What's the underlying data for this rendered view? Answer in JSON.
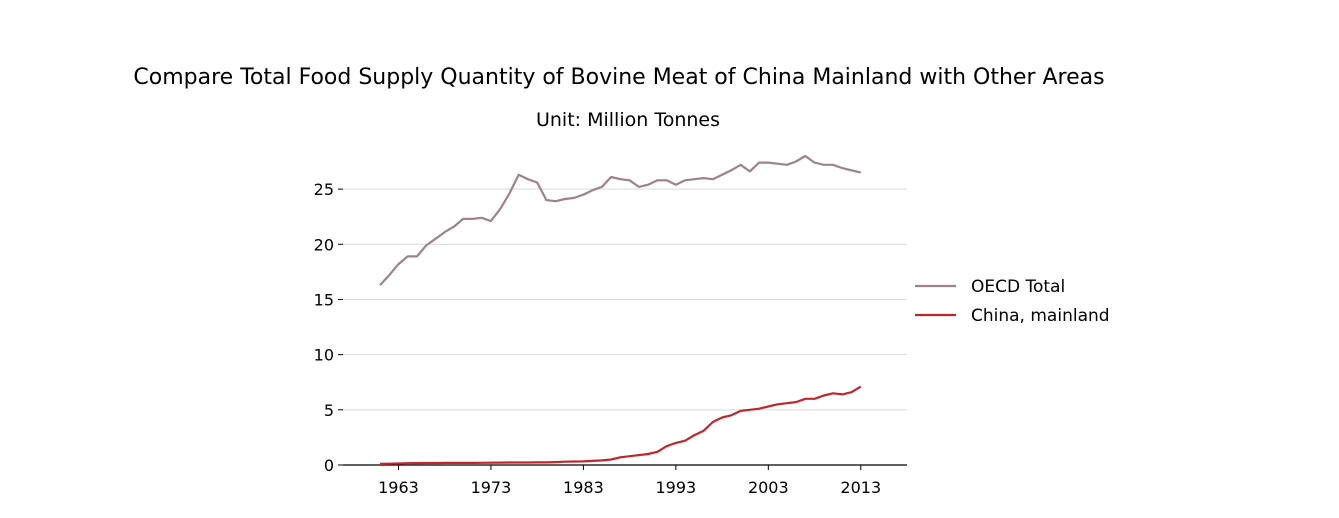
{
  "chart_data": {
    "type": "line",
    "title": "Compare Total Food Supply Quantity of Bovine Meat of China Mainland with Other Areas",
    "subtitle": "Unit: Million Tonnes",
    "xlabel": "",
    "ylabel": "",
    "xlim": [
      1957,
      2018
    ],
    "ylim": [
      0,
      28
    ],
    "x_ticks": [
      1963,
      1973,
      1983,
      1993,
      2003,
      2013
    ],
    "y_ticks": [
      0,
      5,
      10,
      15,
      20,
      25
    ],
    "grid": "horizontal",
    "legend_position": "right",
    "x": [
      1961,
      1962,
      1963,
      1964,
      1965,
      1966,
      1967,
      1968,
      1969,
      1970,
      1971,
      1972,
      1973,
      1974,
      1975,
      1976,
      1977,
      1978,
      1979,
      1980,
      1981,
      1982,
      1983,
      1984,
      1985,
      1986,
      1987,
      1988,
      1989,
      1990,
      1991,
      1992,
      1993,
      1994,
      1995,
      1996,
      1997,
      1998,
      1999,
      2000,
      2001,
      2002,
      2003,
      2004,
      2005,
      2006,
      2007,
      2008,
      2009,
      2010,
      2011,
      2012,
      2013
    ],
    "series": [
      {
        "name": "OECD Total",
        "color": "#9e8189",
        "values": [
          16.3,
          17.2,
          18.2,
          18.9,
          18.9,
          19.9,
          20.5,
          21.1,
          21.6,
          22.3,
          22.3,
          22.4,
          22.1,
          23.2,
          24.6,
          26.3,
          25.9,
          25.6,
          24.0,
          23.9,
          24.1,
          24.2,
          24.5,
          24.9,
          25.2,
          26.1,
          25.9,
          25.8,
          25.2,
          25.4,
          25.8,
          25.8,
          25.4,
          25.8,
          25.9,
          26.0,
          25.9,
          26.3,
          26.7,
          27.2,
          26.6,
          27.4,
          27.4,
          27.3,
          27.2,
          27.5,
          28.0,
          27.4,
          27.2,
          27.2,
          26.9,
          26.7,
          26.5
        ]
      },
      {
        "name": "China, mainland",
        "color": "#c0272d",
        "values": [
          0.1,
          0.12,
          0.14,
          0.16,
          0.17,
          0.18,
          0.18,
          0.19,
          0.19,
          0.19,
          0.19,
          0.2,
          0.21,
          0.22,
          0.23,
          0.23,
          0.23,
          0.24,
          0.24,
          0.26,
          0.3,
          0.32,
          0.33,
          0.37,
          0.42,
          0.5,
          0.7,
          0.8,
          0.9,
          1.0,
          1.2,
          1.7,
          2.0,
          2.2,
          2.7,
          3.1,
          3.9,
          4.3,
          4.5,
          4.9,
          5.0,
          5.1,
          5.3,
          5.5,
          5.6,
          5.7,
          6.0,
          6.0,
          6.3,
          6.5,
          6.4,
          6.6,
          7.1
        ]
      }
    ]
  }
}
